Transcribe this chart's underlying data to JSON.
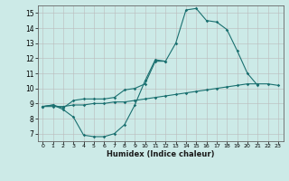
{
  "title": "",
  "xlabel": "Humidex (Indice chaleur)",
  "ylabel": "",
  "background_color": "#cceae7",
  "grid_color": "#bbbbbb",
  "line_color": "#1a7070",
  "xlim": [
    -0.5,
    23.5
  ],
  "ylim": [
    6.5,
    15.5
  ],
  "xticks": [
    0,
    1,
    2,
    3,
    4,
    5,
    6,
    7,
    8,
    9,
    10,
    11,
    12,
    13,
    14,
    15,
    16,
    17,
    18,
    19,
    20,
    21,
    22,
    23
  ],
  "yticks": [
    7,
    8,
    9,
    10,
    11,
    12,
    13,
    14,
    15
  ],
  "series": [
    {
      "x": [
        0,
        1,
        2,
        3,
        4,
        5,
        6,
        7,
        8,
        9,
        10,
        11,
        12,
        13,
        14,
        15,
        16,
        17,
        18,
        19,
        20,
        21
      ],
      "y": [
        8.8,
        8.9,
        8.7,
        9.2,
        9.3,
        9.3,
        9.3,
        9.4,
        9.9,
        10.0,
        10.3,
        11.8,
        11.8,
        13.0,
        15.2,
        15.3,
        14.5,
        14.4,
        13.9,
        12.5,
        11.0,
        10.2
      ]
    },
    {
      "x": [
        0,
        1,
        2,
        3,
        4,
        5,
        6,
        7,
        8,
        9,
        10,
        11,
        12
      ],
      "y": [
        8.8,
        8.9,
        8.6,
        8.1,
        6.9,
        6.8,
        6.8,
        7.0,
        7.6,
        8.9,
        10.5,
        11.9,
        11.8
      ]
    },
    {
      "x": [
        0,
        1,
        2,
        3,
        4,
        5,
        6,
        7,
        8,
        9,
        10,
        11,
        12,
        13,
        14,
        15,
        16,
        17,
        18,
        19,
        20,
        21,
        22,
        23
      ],
      "y": [
        8.8,
        8.8,
        8.8,
        8.9,
        8.9,
        9.0,
        9.0,
        9.1,
        9.1,
        9.2,
        9.3,
        9.4,
        9.5,
        9.6,
        9.7,
        9.8,
        9.9,
        10.0,
        10.1,
        10.2,
        10.3,
        10.3,
        10.3,
        10.2
      ]
    }
  ]
}
